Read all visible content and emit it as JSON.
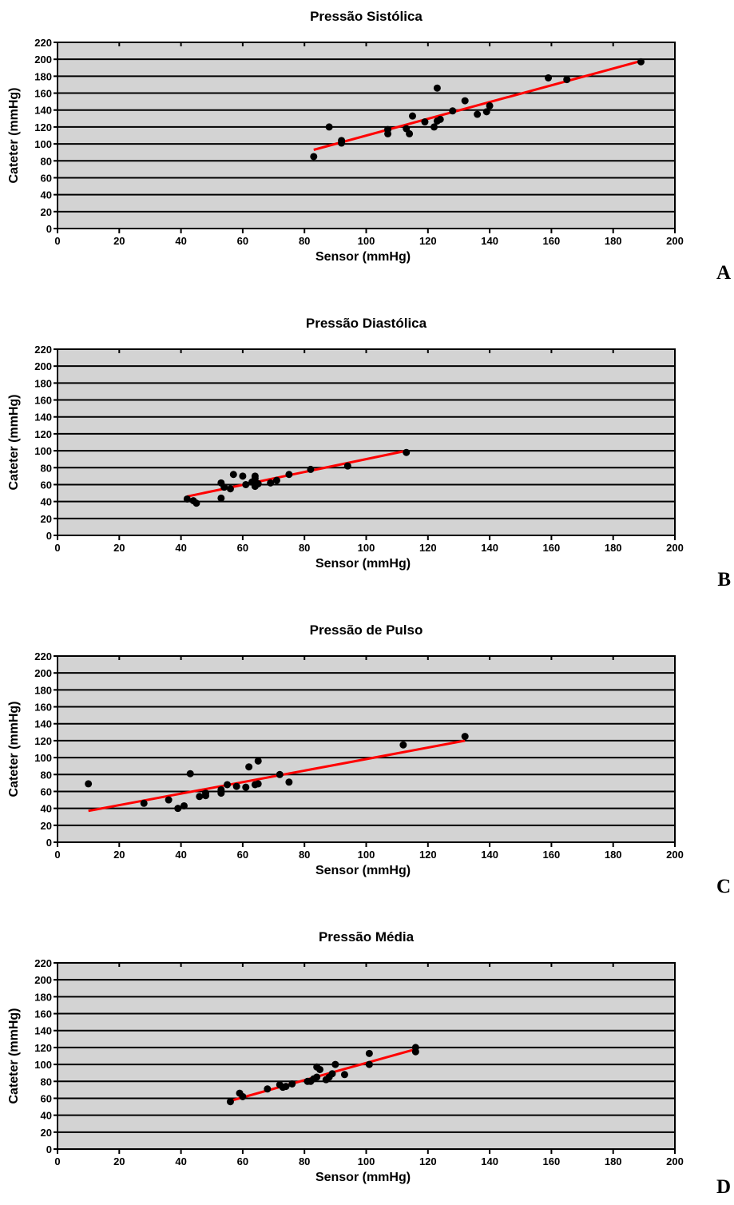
{
  "colors": {
    "plot_background": "#d3d3d3",
    "gridline": "#000000",
    "points": "#000000",
    "fit_line": "#ff0000"
  },
  "chart_data": [
    {
      "type": "scatter",
      "panel_letter": "A",
      "title": "Pressão Sistólica",
      "xlabel": "Sensor (mmHg)",
      "ylabel": "Cateter (mmHg)",
      "xlim": [
        0,
        200
      ],
      "ylim": [
        0,
        220
      ],
      "xticks": [
        0,
        20,
        40,
        60,
        80,
        100,
        120,
        140,
        160,
        180,
        200
      ],
      "yticks": [
        0,
        20,
        40,
        60,
        80,
        100,
        120,
        140,
        160,
        180,
        200,
        220
      ],
      "grid": "horizontal",
      "points": [
        [
          83,
          85
        ],
        [
          88,
          120
        ],
        [
          92,
          101
        ],
        [
          92,
          104
        ],
        [
          107,
          112
        ],
        [
          107,
          117
        ],
        [
          113,
          118
        ],
        [
          114,
          112
        ],
        [
          115,
          133
        ],
        [
          119,
          126
        ],
        [
          122,
          120
        ],
        [
          123,
          127
        ],
        [
          124,
          129
        ],
        [
          123,
          166
        ],
        [
          128,
          139
        ],
        [
          132,
          151
        ],
        [
          136,
          135
        ],
        [
          139,
          138
        ],
        [
          140,
          145
        ],
        [
          159,
          178
        ],
        [
          165,
          176
        ],
        [
          189,
          197
        ]
      ],
      "fit_line": [
        [
          83,
          93
        ],
        [
          189,
          198
        ]
      ]
    },
    {
      "type": "scatter",
      "panel_letter": "B",
      "title": "Pressão Diastólica",
      "xlabel": "Sensor (mmHg)",
      "ylabel": "Cateter (mmHg)",
      "xlim": [
        0,
        200
      ],
      "ylim": [
        0,
        220
      ],
      "xticks": [
        0,
        20,
        40,
        60,
        80,
        100,
        120,
        140,
        160,
        180,
        200
      ],
      "yticks": [
        0,
        20,
        40,
        60,
        80,
        100,
        120,
        140,
        160,
        180,
        200,
        220
      ],
      "grid": "horizontal",
      "points": [
        [
          42,
          43
        ],
        [
          44,
          41
        ],
        [
          45,
          38
        ],
        [
          53,
          44
        ],
        [
          53,
          62
        ],
        [
          54,
          57
        ],
        [
          56,
          55
        ],
        [
          57,
          72
        ],
        [
          60,
          70
        ],
        [
          61,
          60
        ],
        [
          63,
          63
        ],
        [
          64,
          58
        ],
        [
          64,
          67
        ],
        [
          64,
          70
        ],
        [
          65,
          61
        ],
        [
          69,
          62
        ],
        [
          71,
          65
        ],
        [
          75,
          72
        ],
        [
          82,
          78
        ],
        [
          94,
          82
        ],
        [
          113,
          98
        ]
      ],
      "fit_line": [
        [
          42,
          46
        ],
        [
          113,
          100
        ]
      ]
    },
    {
      "type": "scatter",
      "panel_letter": "C",
      "title": "Pressão de Pulso",
      "xlabel": "Sensor (mmHg)",
      "ylabel": "Cateter (mmHg)",
      "xlim": [
        0,
        200
      ],
      "ylim": [
        0,
        220
      ],
      "xticks": [
        0,
        20,
        40,
        60,
        80,
        100,
        120,
        140,
        160,
        180,
        200
      ],
      "yticks": [
        0,
        20,
        40,
        60,
        80,
        100,
        120,
        140,
        160,
        180,
        200,
        220
      ],
      "grid": "horizontal",
      "points": [
        [
          10,
          69
        ],
        [
          28,
          46
        ],
        [
          36,
          50
        ],
        [
          39,
          40
        ],
        [
          41,
          43
        ],
        [
          43,
          81
        ],
        [
          46,
          54
        ],
        [
          48,
          55
        ],
        [
          48,
          58
        ],
        [
          53,
          58
        ],
        [
          53,
          62
        ],
        [
          55,
          68
        ],
        [
          58,
          66
        ],
        [
          61,
          65
        ],
        [
          62,
          89
        ],
        [
          64,
          68
        ],
        [
          65,
          69
        ],
        [
          65,
          96
        ],
        [
          72,
          80
        ],
        [
          75,
          71
        ],
        [
          112,
          115
        ],
        [
          132,
          125
        ]
      ],
      "fit_line": [
        [
          10,
          37
        ],
        [
          132,
          120
        ]
      ]
    },
    {
      "type": "scatter",
      "panel_letter": "D",
      "title": "Pressão Média",
      "xlabel": "Sensor (mmHg)",
      "ylabel": "Cateter (mmHg)",
      "xlim": [
        0,
        200
      ],
      "ylim": [
        0,
        220
      ],
      "xticks": [
        0,
        20,
        40,
        60,
        80,
        100,
        120,
        140,
        160,
        180,
        200
      ],
      "yticks": [
        0,
        20,
        40,
        60,
        80,
        100,
        120,
        140,
        160,
        180,
        200,
        220
      ],
      "grid": "horizontal",
      "points": [
        [
          56,
          56
        ],
        [
          59,
          66
        ],
        [
          60,
          62
        ],
        [
          68,
          71
        ],
        [
          72,
          76
        ],
        [
          73,
          73
        ],
        [
          74,
          74
        ],
        [
          76,
          77
        ],
        [
          81,
          80
        ],
        [
          82,
          80
        ],
        [
          83,
          83
        ],
        [
          84,
          97
        ],
        [
          84,
          85
        ],
        [
          85,
          94
        ],
        [
          87,
          82
        ],
        [
          88,
          85
        ],
        [
          89,
          89
        ],
        [
          90,
          100
        ],
        [
          93,
          88
        ],
        [
          101,
          100
        ],
        [
          101,
          113
        ],
        [
          116,
          115
        ],
        [
          116,
          120
        ]
      ],
      "fit_line": [
        [
          56,
          57
        ],
        [
          116,
          118
        ]
      ]
    }
  ]
}
